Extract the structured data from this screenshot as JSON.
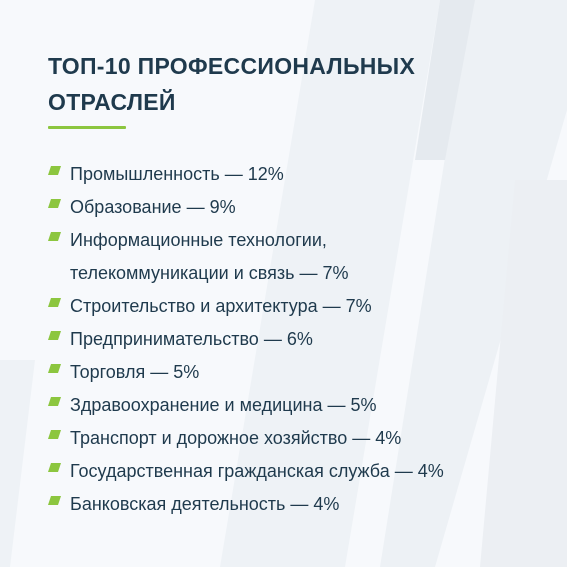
{
  "title_lines": [
    "ТОП-10 ПРОФЕССИОНАЛЬНЫХ",
    "ОТРАСЛЕЙ"
  ],
  "accent_color": "#8cc63f",
  "text_color": "#1f3a4d",
  "bullet_icon": "green-dash-icon",
  "items": [
    {
      "text": "Промышленность — 12%",
      "lines": 1
    },
    {
      "text": "Образование — 9%",
      "lines": 1
    },
    {
      "text_lines": [
        "Информационные технологии,",
        "телекоммуникации и связь — 7%"
      ],
      "lines": 2
    },
    {
      "text": "Строительство и архитектура — 7%",
      "lines": 1
    },
    {
      "text": "Предпринимательство — 6%",
      "lines": 1
    },
    {
      "text": "Торговля — 5%",
      "lines": 1
    },
    {
      "text": "Здравоохранение и медицина — 5%",
      "lines": 1
    },
    {
      "text": "Транспорт и дорожное хозяйство — 4%",
      "lines": 1
    },
    {
      "text": "Государственная гражданская служба — 4%",
      "lines": 1
    },
    {
      "text": "Банковская деятельность — 4%",
      "lines": 1
    }
  ]
}
